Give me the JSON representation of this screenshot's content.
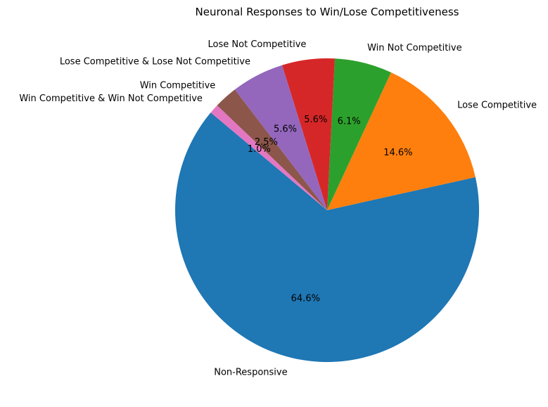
{
  "chart_data": {
    "type": "pie",
    "title": "Neuronal Responses to Win/Lose Competitiveness",
    "start_angle_deg": 140,
    "direction": "counterclockwise",
    "slices": [
      {
        "label": "Non-Responsive",
        "value": 64.6,
        "pct_label": "64.6%",
        "color": "#1f77b4"
      },
      {
        "label": "Lose Competitive",
        "value": 14.6,
        "pct_label": "14.6%",
        "color": "#ff7f0e"
      },
      {
        "label": "Win Not Competitive",
        "value": 6.1,
        "pct_label": "6.1%",
        "color": "#2ca02c"
      },
      {
        "label": "Lose Not Competitive",
        "value": 5.6,
        "pct_label": "5.6%",
        "color": "#d62728"
      },
      {
        "label": "Lose Competitive & Lose Not Competitive",
        "value": 5.6,
        "pct_label": "5.6%",
        "color": "#9467bd"
      },
      {
        "label": "Win Competitive",
        "value": 2.5,
        "pct_label": "2.5%",
        "color": "#8c564b"
      },
      {
        "label": "Win Competitive & Win Not Competitive",
        "value": 1.0,
        "pct_label": "1.0%",
        "color": "#e377c2"
      }
    ]
  }
}
